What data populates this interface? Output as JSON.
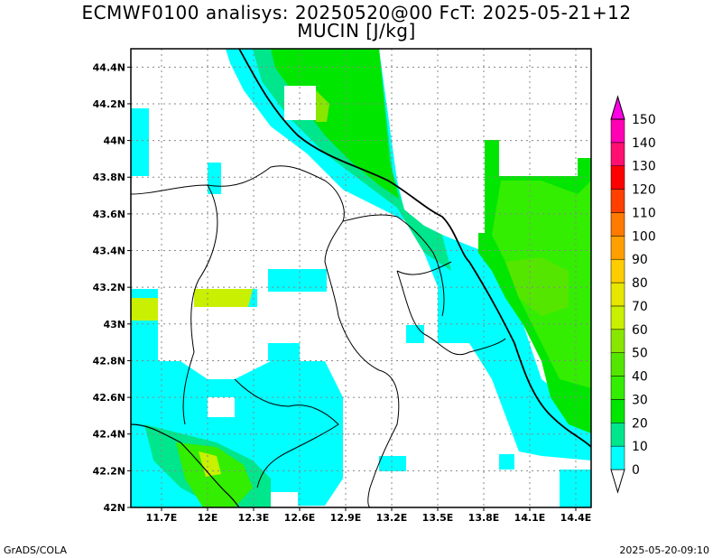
{
  "title": {
    "line1": "ECMWF0100 analisys: 20250520@00 FcT: 2025-05-21+12",
    "line2": "MUCIN [J/kg]"
  },
  "footer": {
    "left": "GrADS/COLA",
    "right": "2025-05-20-09:10"
  },
  "map": {
    "lon_range": [
      11.5,
      14.5
    ],
    "lat_range": [
      42.0,
      44.5
    ],
    "lon_ticks": [
      {
        "v": 11.7,
        "label": "11.7E"
      },
      {
        "v": 12.0,
        "label": "12E"
      },
      {
        "v": 12.3,
        "label": "12.3E"
      },
      {
        "v": 12.6,
        "label": "12.6E"
      },
      {
        "v": 12.9,
        "label": "12.9E"
      },
      {
        "v": 13.2,
        "label": "13.2E"
      },
      {
        "v": 13.5,
        "label": "13.5E"
      },
      {
        "v": 13.8,
        "label": "13.8E"
      },
      {
        "v": 14.1,
        "label": "14.1E"
      },
      {
        "v": 14.4,
        "label": "14.4E"
      }
    ],
    "lat_ticks": [
      {
        "v": 42.0,
        "label": "42N"
      },
      {
        "v": 42.2,
        "label": "42.2N"
      },
      {
        "v": 42.4,
        "label": "42.4N"
      },
      {
        "v": 42.6,
        "label": "42.6N"
      },
      {
        "v": 42.8,
        "label": "42.8N"
      },
      {
        "v": 43.0,
        "label": "43N"
      },
      {
        "v": 43.2,
        "label": "43.2N"
      },
      {
        "v": 43.4,
        "label": "43.4N"
      },
      {
        "v": 43.6,
        "label": "43.6N"
      },
      {
        "v": 43.8,
        "label": "43.8N"
      },
      {
        "v": 44.0,
        "label": "44N"
      },
      {
        "v": 44.2,
        "label": "44.2N"
      },
      {
        "v": 44.4,
        "label": "44.4N"
      }
    ],
    "grid": "dotted",
    "colorbar": {
      "levels": [
        "0",
        "10",
        "20",
        "30",
        "40",
        "50",
        "60",
        "70",
        "80",
        "90",
        "100",
        "110",
        "120",
        "130",
        "140",
        "150"
      ],
      "colors": [
        "#00ffff",
        "#00e68c",
        "#00e600",
        "#33ee00",
        "#55e600",
        "#88e600",
        "#c8f000",
        "#e6e600",
        "#ffcc00",
        "#ffa000",
        "#ff7a00",
        "#ff4000",
        "#ff0000",
        "#ff1070",
        "#ff00b4",
        "#ff00e6"
      ],
      "placement": "right"
    }
  }
}
